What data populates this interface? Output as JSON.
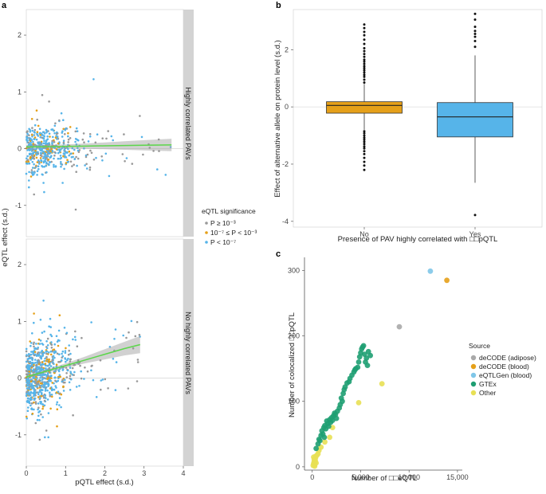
{
  "panel_labels": {
    "a": "a",
    "b": "b",
    "c": "c"
  },
  "chart_data": [
    {
      "id": "a",
      "type": "scatter",
      "xlabel": "pQTL effect (s.d.)",
      "ylabel": "eQTL effect (s.d.)",
      "xlim": [
        0,
        4
      ],
      "x_ticks": [
        "0",
        "1",
        "2",
        "3",
        "4"
      ],
      "facets": [
        {
          "strip": "Highly correlated PAVs",
          "ylim": [
            -1.55,
            2.45
          ],
          "y_ticks": [
            "-1",
            "0",
            "1",
            "2"
          ],
          "trend": {
            "x": [
              0,
              0.5,
              1,
              1.5,
              2,
              2.5,
              3,
              3.7
            ],
            "y": [
              0.03,
              0.035,
              0.04,
              0.045,
              0.05,
              0.055,
              0.06,
              0.065
            ],
            "band": [
              0.03,
              0.03,
              0.035,
              0.045,
              0.06,
              0.075,
              0.09,
              0.11
            ]
          }
        },
        {
          "strip": "No highly correlated PAVs",
          "ylim": [
            -1.55,
            2.45
          ],
          "y_ticks": [
            "-1",
            "0",
            "1",
            "2"
          ],
          "trend": {
            "x": [
              0,
              0.5,
              1,
              1.5,
              2,
              2.5,
              2.9
            ],
            "y": [
              0.02,
              0.12,
              0.22,
              0.32,
              0.42,
              0.52,
              0.59
            ],
            "band": [
              0.03,
              0.03,
              0.04,
              0.06,
              0.09,
              0.12,
              0.15
            ]
          }
        }
      ],
      "legend": {
        "title": "eQTL significance",
        "entries": [
          {
            "label": "P ≥ 10⁻³",
            "color": "#999999"
          },
          {
            "label": "10⁻⁷ ≤ P < 10⁻³",
            "color": "#e5a019"
          },
          {
            "label": "P < 10⁻⁷",
            "color": "#56b4e9"
          }
        ]
      },
      "trend_color": "#5bd64a"
    },
    {
      "id": "b",
      "type": "box",
      "xlabel": "Presence of PAV highly correlated with □□pQTL",
      "ylabel": "Effect of alternative allele on protein level (s.d.)",
      "ylim": [
        -4.2,
        3.4
      ],
      "y_ticks": [
        "-4",
        "-2",
        "0",
        "2"
      ],
      "categories": [
        "No",
        "Yes"
      ],
      "boxes": [
        {
          "category": "No",
          "q1": -0.22,
          "median": 0.05,
          "q3": 0.18,
          "whisker_low": -0.8,
          "whisker_high": 0.8,
          "color": "#e5a019",
          "outliers": [
            0.85,
            0.95,
            1.05,
            1.12,
            1.2,
            1.28,
            1.35,
            1.42,
            1.5,
            1.58,
            1.65,
            1.75,
            1.85,
            1.95,
            2.05,
            2.2,
            2.35,
            2.5,
            2.62,
            2.75,
            2.88,
            -0.85,
            -0.92,
            -1.0,
            -1.08,
            -1.15,
            -1.22,
            -1.3,
            -1.38,
            -1.45,
            -1.55,
            -1.65,
            -1.78,
            -1.92,
            -2.05,
            -2.2
          ]
        },
        {
          "category": "Yes",
          "q1": -1.05,
          "median": -0.35,
          "q3": 0.15,
          "whisker_low": -2.65,
          "whisker_high": 1.8,
          "color": "#56b4e9",
          "outliers": [
            2.1,
            2.3,
            2.45,
            2.55,
            2.65,
            2.8,
            3.05,
            3.25,
            -3.78
          ]
        }
      ]
    },
    {
      "id": "c",
      "type": "scatter",
      "xlabel": "Number of □□eQTL",
      "ylabel": "Number of colocalized □□pQTL",
      "xlim": [
        -800,
        15500
      ],
      "ylim": [
        -5,
        320
      ],
      "x_ticks": [
        0,
        5000,
        10000,
        15000
      ],
      "x_tick_labels": [
        "0",
        "5,000",
        "10,000",
        "15,000"
      ],
      "y_ticks": [
        0,
        100,
        200,
        300
      ],
      "y_tick_labels": [
        "0",
        "100",
        "200",
        "300"
      ],
      "legend": {
        "title": "Source",
        "entries": [
          {
            "label": "deCODE (adipose)",
            "color": "#a9a9a9"
          },
          {
            "label": "deCODE (blood)",
            "color": "#e5a019"
          },
          {
            "label": "eQTLGen (blood)",
            "color": "#7fc6e8"
          },
          {
            "label": "GTEx",
            "color": "#1e9e72"
          },
          {
            "label": "Other",
            "color": "#e8e054"
          }
        ]
      },
      "series": [
        {
          "name": "deCODE (adipose)",
          "x": [
            9000
          ],
          "y": [
            214
          ]
        },
        {
          "name": "deCODE (blood)",
          "x": [
            13900
          ],
          "y": [
            285
          ]
        },
        {
          "name": "eQTLGen (blood)",
          "x": [
            12200
          ],
          "y": [
            299
          ]
        },
        {
          "name": "GTEx",
          "x": [
            400,
            600,
            700,
            900,
            1000,
            1100,
            1200,
            1300,
            1400,
            1500,
            1600,
            1800,
            1900,
            2000,
            2100,
            2200,
            2400,
            2500,
            2600,
            2800,
            2900,
            3000,
            3100,
            3200,
            3300,
            3400,
            3600,
            3900,
            4100,
            4300,
            4500,
            4700,
            4800,
            4900,
            5000,
            5100,
            5200,
            5400,
            5500,
            5600,
            5700,
            5800,
            6000,
            1700,
            2300,
            800,
            1250,
            3800,
            4400,
            5300
          ],
          "y": [
            28,
            35,
            42,
            48,
            55,
            50,
            60,
            63,
            58,
            70,
            66,
            72,
            68,
            75,
            71,
            78,
            80,
            74,
            85,
            90,
            95,
            105,
            100,
            112,
            118,
            122,
            128,
            135,
            140,
            145,
            150,
            152,
            160,
            168,
            174,
            180,
            183,
            172,
            160,
            166,
            155,
            176,
            170,
            62,
            82,
            40,
            45,
            130,
            148,
            185
          ]
        },
        {
          "name": "Other",
          "x": [
            100,
            150,
            200,
            250,
            300,
            350,
            400,
            200,
            250,
            300,
            150,
            500,
            600,
            700,
            900,
            1300,
            1800,
            2100,
            4800,
            7200,
            250,
            350
          ],
          "y": [
            2,
            5,
            8,
            4,
            10,
            14,
            6,
            12,
            3,
            9,
            15,
            18,
            20,
            25,
            30,
            38,
            45,
            60,
            98,
            127,
            1,
            16
          ]
        }
      ]
    }
  ]
}
